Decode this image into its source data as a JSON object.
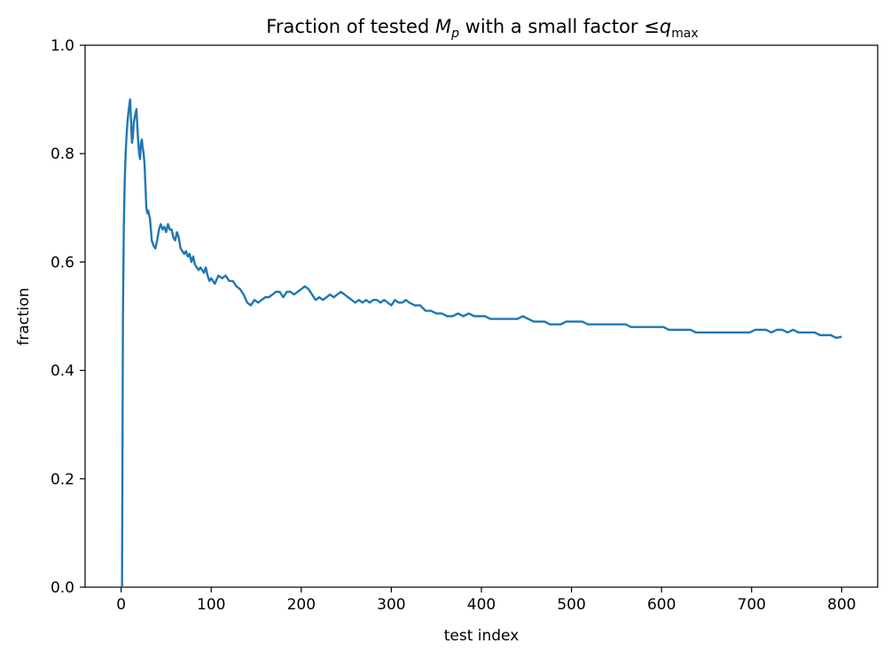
{
  "chart_data": {
    "type": "line",
    "title_parts": {
      "prefix": "Fraction of tested ",
      "var": "M",
      "var_sub": "p",
      "middle": " with a small factor ",
      "leq": "≤",
      "q": "q",
      "q_sub": "max"
    },
    "xlabel": "test index",
    "ylabel": "fraction",
    "xlim": [
      -40,
      840
    ],
    "ylim": [
      0.0,
      1.0
    ],
    "xticks": [
      0,
      100,
      200,
      300,
      400,
      500,
      600,
      700,
      800
    ],
    "xtick_labels": [
      "0",
      "100",
      "200",
      "300",
      "400",
      "500",
      "600",
      "700",
      "800"
    ],
    "yticks": [
      0.0,
      0.2,
      0.4,
      0.6,
      0.8,
      1.0
    ],
    "ytick_labels": [
      "0.0",
      "0.2",
      "0.4",
      "0.6",
      "0.8",
      "1.0"
    ],
    "grid": false,
    "series": [
      {
        "name": "fraction",
        "color": "#1f77b4",
        "points": [
          [
            1,
            0.0
          ],
          [
            2,
            0.5
          ],
          [
            3,
            0.667
          ],
          [
            4,
            0.75
          ],
          [
            5,
            0.8
          ],
          [
            6,
            0.833
          ],
          [
            7,
            0.857
          ],
          [
            8,
            0.875
          ],
          [
            9,
            0.889
          ],
          [
            10,
            0.9
          ],
          [
            11,
            0.86
          ],
          [
            12,
            0.82
          ],
          [
            13,
            0.83
          ],
          [
            14,
            0.857
          ],
          [
            15,
            0.867
          ],
          [
            16,
            0.875
          ],
          [
            17,
            0.882
          ],
          [
            18,
            0.85
          ],
          [
            19,
            0.82
          ],
          [
            20,
            0.8
          ],
          [
            21,
            0.79
          ],
          [
            22,
            0.82
          ],
          [
            23,
            0.826
          ],
          [
            24,
            0.81
          ],
          [
            25,
            0.8
          ],
          [
            26,
            0.78
          ],
          [
            27,
            0.74
          ],
          [
            28,
            0.7
          ],
          [
            29,
            0.69
          ],
          [
            30,
            0.695
          ],
          [
            32,
            0.68
          ],
          [
            34,
            0.64
          ],
          [
            36,
            0.63
          ],
          [
            38,
            0.625
          ],
          [
            40,
            0.64
          ],
          [
            42,
            0.66
          ],
          [
            44,
            0.67
          ],
          [
            46,
            0.66
          ],
          [
            48,
            0.665
          ],
          [
            50,
            0.655
          ],
          [
            52,
            0.67
          ],
          [
            54,
            0.66
          ],
          [
            56,
            0.66
          ],
          [
            58,
            0.645
          ],
          [
            60,
            0.64
          ],
          [
            62,
            0.655
          ],
          [
            64,
            0.645
          ],
          [
            66,
            0.625
          ],
          [
            68,
            0.62
          ],
          [
            70,
            0.615
          ],
          [
            72,
            0.62
          ],
          [
            74,
            0.61
          ],
          [
            76,
            0.615
          ],
          [
            78,
            0.6
          ],
          [
            80,
            0.61
          ],
          [
            82,
            0.595
          ],
          [
            84,
            0.59
          ],
          [
            86,
            0.585
          ],
          [
            88,
            0.59
          ],
          [
            90,
            0.585
          ],
          [
            92,
            0.58
          ],
          [
            94,
            0.59
          ],
          [
            96,
            0.575
          ],
          [
            98,
            0.565
          ],
          [
            100,
            0.57
          ],
          [
            104,
            0.56
          ],
          [
            108,
            0.575
          ],
          [
            112,
            0.57
          ],
          [
            116,
            0.575
          ],
          [
            120,
            0.565
          ],
          [
            124,
            0.565
          ],
          [
            128,
            0.555
          ],
          [
            132,
            0.55
          ],
          [
            136,
            0.54
          ],
          [
            140,
            0.525
          ],
          [
            144,
            0.52
          ],
          [
            148,
            0.53
          ],
          [
            152,
            0.525
          ],
          [
            156,
            0.53
          ],
          [
            160,
            0.535
          ],
          [
            164,
            0.535
          ],
          [
            168,
            0.54
          ],
          [
            172,
            0.545
          ],
          [
            176,
            0.545
          ],
          [
            180,
            0.535
          ],
          [
            184,
            0.545
          ],
          [
            188,
            0.545
          ],
          [
            192,
            0.54
          ],
          [
            196,
            0.545
          ],
          [
            200,
            0.55
          ],
          [
            204,
            0.555
          ],
          [
            208,
            0.55
          ],
          [
            212,
            0.54
          ],
          [
            216,
            0.53
          ],
          [
            220,
            0.535
          ],
          [
            224,
            0.53
          ],
          [
            228,
            0.535
          ],
          [
            232,
            0.54
          ],
          [
            236,
            0.535
          ],
          [
            240,
            0.54
          ],
          [
            244,
            0.545
          ],
          [
            248,
            0.54
          ],
          [
            252,
            0.535
          ],
          [
            256,
            0.53
          ],
          [
            260,
            0.525
          ],
          [
            264,
            0.53
          ],
          [
            268,
            0.525
          ],
          [
            272,
            0.53
          ],
          [
            276,
            0.525
          ],
          [
            280,
            0.53
          ],
          [
            284,
            0.53
          ],
          [
            288,
            0.525
          ],
          [
            292,
            0.53
          ],
          [
            296,
            0.525
          ],
          [
            300,
            0.52
          ],
          [
            304,
            0.53
          ],
          [
            308,
            0.525
          ],
          [
            312,
            0.525
          ],
          [
            316,
            0.53
          ],
          [
            320,
            0.525
          ],
          [
            326,
            0.52
          ],
          [
            332,
            0.52
          ],
          [
            338,
            0.51
          ],
          [
            344,
            0.51
          ],
          [
            350,
            0.505
          ],
          [
            356,
            0.505
          ],
          [
            362,
            0.5
          ],
          [
            368,
            0.5
          ],
          [
            374,
            0.505
          ],
          [
            380,
            0.5
          ],
          [
            386,
            0.505
          ],
          [
            392,
            0.5
          ],
          [
            398,
            0.5
          ],
          [
            404,
            0.5
          ],
          [
            410,
            0.495
          ],
          [
            416,
            0.495
          ],
          [
            422,
            0.495
          ],
          [
            428,
            0.495
          ],
          [
            434,
            0.495
          ],
          [
            440,
            0.495
          ],
          [
            446,
            0.5
          ],
          [
            452,
            0.495
          ],
          [
            458,
            0.49
          ],
          [
            464,
            0.49
          ],
          [
            470,
            0.49
          ],
          [
            476,
            0.485
          ],
          [
            482,
            0.485
          ],
          [
            488,
            0.485
          ],
          [
            494,
            0.49
          ],
          [
            500,
            0.49
          ],
          [
            506,
            0.49
          ],
          [
            512,
            0.49
          ],
          [
            518,
            0.485
          ],
          [
            524,
            0.485
          ],
          [
            530,
            0.485
          ],
          [
            536,
            0.485
          ],
          [
            542,
            0.485
          ],
          [
            548,
            0.485
          ],
          [
            554,
            0.485
          ],
          [
            560,
            0.485
          ],
          [
            566,
            0.48
          ],
          [
            572,
            0.48
          ],
          [
            578,
            0.48
          ],
          [
            584,
            0.48
          ],
          [
            590,
            0.48
          ],
          [
            596,
            0.48
          ],
          [
            602,
            0.48
          ],
          [
            608,
            0.475
          ],
          [
            614,
            0.475
          ],
          [
            620,
            0.475
          ],
          [
            626,
            0.475
          ],
          [
            632,
            0.475
          ],
          [
            638,
            0.47
          ],
          [
            644,
            0.47
          ],
          [
            650,
            0.47
          ],
          [
            656,
            0.47
          ],
          [
            662,
            0.47
          ],
          [
            668,
            0.47
          ],
          [
            674,
            0.47
          ],
          [
            680,
            0.47
          ],
          [
            686,
            0.47
          ],
          [
            692,
            0.47
          ],
          [
            698,
            0.47
          ],
          [
            704,
            0.475
          ],
          [
            710,
            0.475
          ],
          [
            716,
            0.475
          ],
          [
            722,
            0.47
          ],
          [
            728,
            0.475
          ],
          [
            734,
            0.475
          ],
          [
            740,
            0.47
          ],
          [
            746,
            0.475
          ],
          [
            752,
            0.47
          ],
          [
            758,
            0.47
          ],
          [
            764,
            0.47
          ],
          [
            770,
            0.47
          ],
          [
            776,
            0.465
          ],
          [
            782,
            0.465
          ],
          [
            788,
            0.465
          ],
          [
            794,
            0.46
          ],
          [
            800,
            0.462
          ]
        ]
      }
    ]
  }
}
